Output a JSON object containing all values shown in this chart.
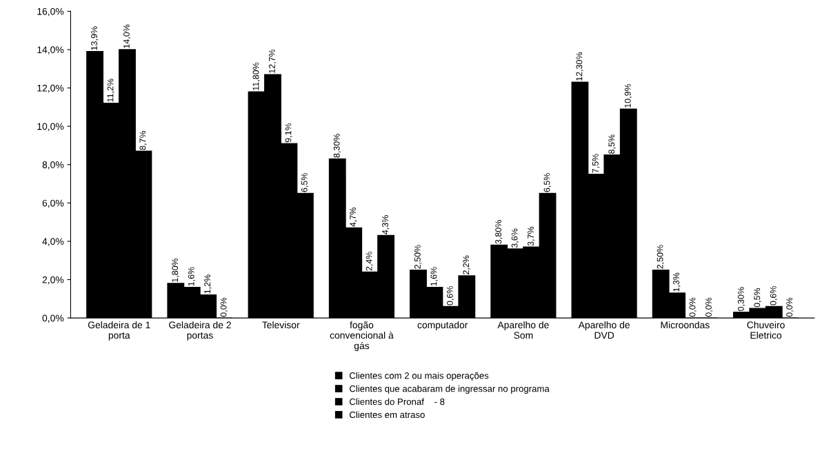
{
  "chart_data": {
    "type": "bar",
    "categories": [
      "Geladeira de 1\nporta",
      "Geladeira de 2\nportas",
      "Televisor",
      "fogão\nconvencional à\ngás",
      "computador",
      "Aparelho de\nSom",
      "Aparelho de\nDVD",
      "Microondas",
      "Chuveiro\nEletrico"
    ],
    "series": [
      {
        "name": "Clientes com 2 ou mais operações",
        "color": "#000000",
        "values": [
          13.9,
          1.8,
          11.8,
          8.3,
          2.5,
          3.8,
          12.3,
          2.5,
          0.3
        ],
        "value_labels": [
          "13,9%",
          "1,80%",
          "11,80%",
          "8,30%",
          "2,50%",
          "3,80%",
          "12,30%",
          "2,50%",
          "0,30%"
        ]
      },
      {
        "name": "Clientes que acabaram de ingressar no programa",
        "color": "#000000",
        "values": [
          11.2,
          1.6,
          12.7,
          4.7,
          1.6,
          3.6,
          7.5,
          1.3,
          0.5
        ],
        "value_labels": [
          "11,2%",
          "1,6%",
          "12,7%",
          "4,7%",
          "1,6%",
          "3,6%",
          "7,5%",
          "1,3%",
          "0,5%"
        ]
      },
      {
        "name": "Clientes do Pronaf    - 8",
        "color": "#000000",
        "values": [
          14.0,
          1.2,
          9.1,
          2.4,
          0.6,
          3.7,
          8.5,
          0.0,
          0.6
        ],
        "value_labels": [
          "14,0%",
          "1,2%",
          "9,1%",
          "2,4%",
          "0,6%",
          "3,7%",
          "8,5%",
          "0,0%",
          "0,6%"
        ]
      },
      {
        "name": "Clientes em atraso",
        "color": "#000000",
        "values": [
          8.7,
          0.0,
          6.5,
          4.3,
          2.2,
          6.5,
          10.9,
          0.0,
          0.0
        ],
        "value_labels": [
          "8,7%",
          "0,0%",
          "6,5%",
          "4,3%",
          "2,2%",
          "6,5%",
          "10,9%",
          "0,0%",
          "0,0%"
        ]
      }
    ],
    "ylim": [
      0,
      16
    ],
    "yticks": [
      {
        "value": 0,
        "label": "0,0%"
      },
      {
        "value": 2,
        "label": "2,0%"
      },
      {
        "value": 4,
        "label": "4,0%"
      },
      {
        "value": 6,
        "label": "6,0%"
      },
      {
        "value": 8,
        "label": "8,0%"
      },
      {
        "value": 10,
        "label": "10,0%"
      },
      {
        "value": 12,
        "label": "12,0%"
      },
      {
        "value": 14,
        "label": "14,0%"
      },
      {
        "value": 16,
        "label": "16,0%"
      }
    ],
    "grid": false,
    "legend": "bottom"
  }
}
